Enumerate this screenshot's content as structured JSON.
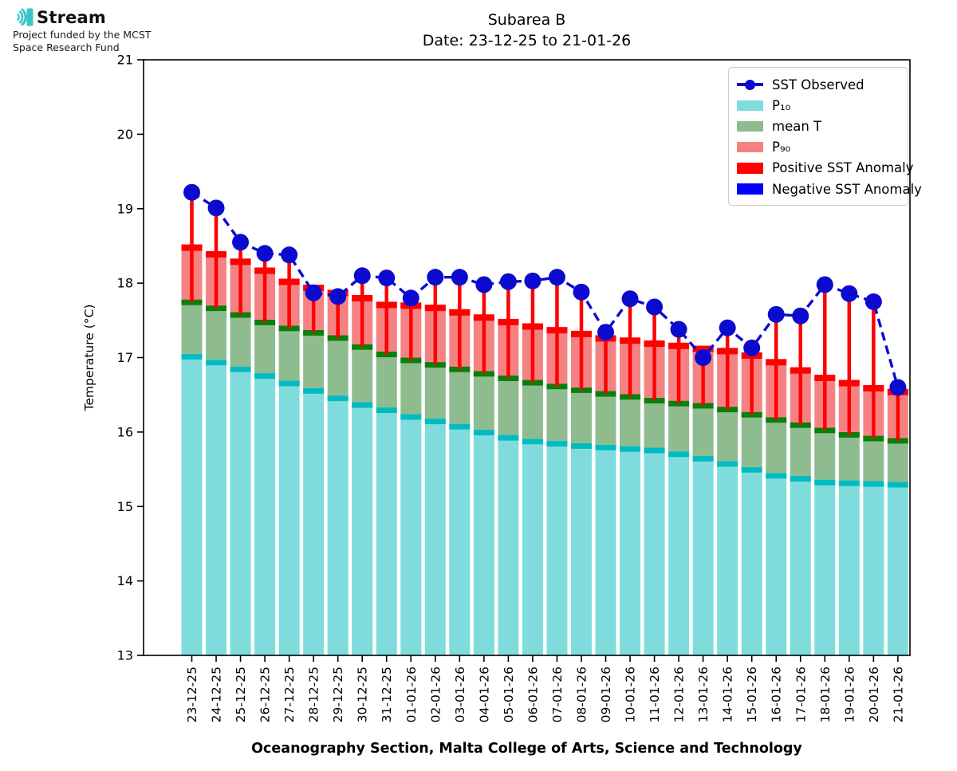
{
  "logo": {
    "brand": "Stream",
    "subtitle_line1": "Project funded by the MCST",
    "subtitle_line2": "Space Research Fund",
    "accent_color": "#3dc5c5"
  },
  "title": {
    "line1": "Subarea B",
    "line2": "Date: 23-12-25 to 21-01-26"
  },
  "footer": {
    "caption": "Oceanography Section, Malta College of Arts, Science and Technology"
  },
  "legend": {
    "items": [
      {
        "label": "SST Observed",
        "marker": "line-dot",
        "color": "#0b0bd0"
      },
      {
        "label": "P₁₀",
        "marker": "patch",
        "color": "#80dcdc"
      },
      {
        "label": "mean T",
        "marker": "patch",
        "color": "#8fbc8f"
      },
      {
        "label": "P₉₀",
        "marker": "patch",
        "color": "#f58282"
      },
      {
        "label": "Positive SST Anomaly",
        "marker": "patch",
        "color": "#fe0000"
      },
      {
        "label": "Negative SST Anomaly",
        "marker": "patch",
        "color": "#0000fe"
      }
    ]
  },
  "chart_data": {
    "type": "bar",
    "title": "Subarea B",
    "subtitle": "Date: 23-12-25 to 21-01-26",
    "ylabel": "Temperature (°C)",
    "xlabel": "Oceanography Section, Malta College of Arts, Science and Technology",
    "ylim": [
      13,
      21
    ],
    "yticks": [
      13,
      14,
      15,
      16,
      17,
      18,
      19,
      20,
      21
    ],
    "grid": false,
    "legend_position": "upper-right",
    "baseline": 13,
    "categories": [
      "23-12-25",
      "24-12-25",
      "25-12-25",
      "26-12-25",
      "27-12-25",
      "28-12-25",
      "29-12-25",
      "30-12-25",
      "31-12-25",
      "01-01-26",
      "02-01-26",
      "03-01-26",
      "04-01-26",
      "05-01-26",
      "06-01-26",
      "07-01-26",
      "08-01-26",
      "09-01-26",
      "10-01-26",
      "11-01-26",
      "12-01-26",
      "13-01-26",
      "14-01-26",
      "15-01-26",
      "16-01-26",
      "17-01-26",
      "18-01-26",
      "19-01-26",
      "20-01-26",
      "21-01-26"
    ],
    "series": [
      {
        "name": "P10",
        "role": "p10",
        "values": [
          17.05,
          16.97,
          16.88,
          16.79,
          16.69,
          16.59,
          16.49,
          16.4,
          16.33,
          16.24,
          16.18,
          16.11,
          16.03,
          15.96,
          15.91,
          15.88,
          15.85,
          15.83,
          15.81,
          15.79,
          15.74,
          15.68,
          15.61,
          15.53,
          15.45,
          15.41,
          15.36,
          15.35,
          15.34,
          15.33
        ]
      },
      {
        "name": "mean T",
        "role": "mean",
        "values": [
          17.78,
          17.7,
          17.61,
          17.51,
          17.43,
          17.37,
          17.3,
          17.18,
          17.08,
          17.0,
          16.94,
          16.88,
          16.82,
          16.76,
          16.7,
          16.65,
          16.6,
          16.55,
          16.51,
          16.46,
          16.42,
          16.39,
          16.34,
          16.27,
          16.2,
          16.13,
          16.06,
          16.0,
          15.95,
          15.92
        ]
      },
      {
        "name": "P90",
        "role": "p90",
        "values": [
          18.52,
          18.43,
          18.33,
          18.21,
          18.06,
          17.98,
          17.91,
          17.84,
          17.75,
          17.74,
          17.71,
          17.65,
          17.58,
          17.52,
          17.46,
          17.41,
          17.36,
          17.3,
          17.27,
          17.23,
          17.2,
          17.16,
          17.13,
          17.07,
          16.98,
          16.87,
          16.77,
          16.7,
          16.63,
          16.58
        ]
      },
      {
        "name": "SST Observed",
        "role": "observed",
        "values": [
          19.22,
          19.01,
          18.55,
          18.4,
          18.38,
          17.87,
          17.82,
          18.1,
          18.07,
          17.8,
          18.08,
          18.08,
          17.98,
          18.02,
          18.03,
          18.08,
          17.88,
          17.34,
          17.79,
          17.68,
          17.38,
          17.0,
          17.4,
          17.13,
          17.58,
          17.56,
          17.98,
          17.86,
          17.75,
          16.6
        ]
      }
    ],
    "colors": {
      "p10_fill": "#80dcdc",
      "p10_cap": "#00bcc2",
      "mean_fill": "#8fbc8f",
      "mean_cap": "#0b7e0b",
      "p90_fill": "#f58282",
      "p90_cap": "#fe0000",
      "observed": "#0b0bd0",
      "positive_anomaly": "#fe0000",
      "negative_anomaly": "#0000fe"
    }
  }
}
